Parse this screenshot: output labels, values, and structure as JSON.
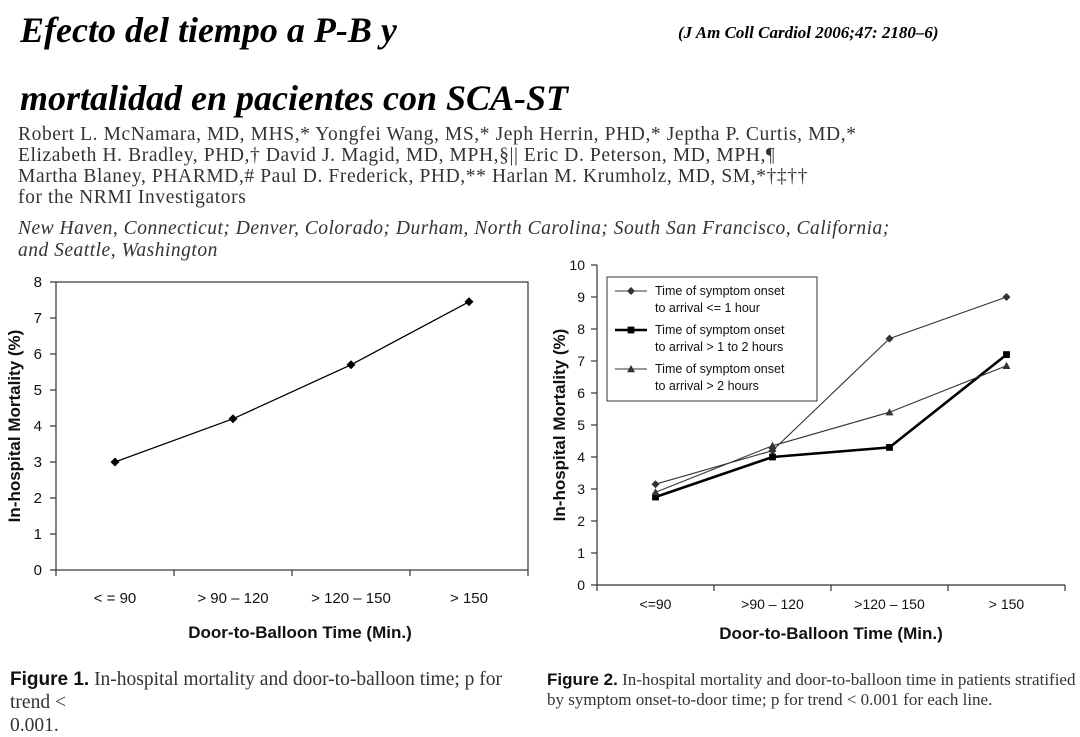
{
  "slide": {
    "title_line1": "Efecto del tiempo a P-B y",
    "title_line2": "mortalidad en pacientes con SCA-ST",
    "citation": "(J Am Coll Cardiol 2006;47: 2180–6)"
  },
  "paper": {
    "authors": [
      "Robert L. McNamara, MD, MHS,* Yongfei Wang, MS,* Jeph Herrin, PHD,* Jeptha P. Curtis, MD,*",
      "Elizabeth H. Bradley, PHD,† David J. Magid, MD, MPH,§|| Eric D. Peterson, MD, MPH,¶",
      "Martha Blaney, PHARMD,# Paul D. Frederick, PHD,** Harlan M. Krumholz, MD, SM,*†‡††",
      "for the NRMI Investigators"
    ],
    "affiliation_line1": "New Haven, Connecticut; Denver, Colorado; Durham, North Carolina; South San Francisco, California;",
    "affiliation_line2": "and Seattle, Washington"
  },
  "figure1": {
    "label": "Figure 1.",
    "caption_line1": "In-hospital mortality and door-to-balloon time; p for trend <",
    "caption_line2": "0.001."
  },
  "figure2": {
    "label": "Figure 2.",
    "caption_line1": "In-hospital mortality and door-to-balloon time in patients stratified",
    "caption_line2": "by symptom onset-to-door time; p for trend < 0.001 for each line."
  },
  "chart_data": [
    {
      "type": "line",
      "categories": [
        "< = 90",
        "> 90 – 120",
        "> 120 – 150",
        "> 150"
      ],
      "series": [
        {
          "values": [
            3.0,
            4.2,
            5.7,
            7.45
          ],
          "color": "#000000",
          "marker": "diamond"
        }
      ],
      "xlabel": "Door-to-Balloon Time (Min.)",
      "ylabel": "In-hospital Mortality (%)",
      "ylim": [
        0,
        8
      ],
      "yticks": [
        "0",
        "1",
        "2",
        "3",
        "4",
        "5",
        "6",
        "7",
        "8"
      ],
      "grid": false,
      "legend": "none"
    },
    {
      "type": "line",
      "categories": [
        "<=90",
        ">90 – 120",
        ">120 – 150",
        "> 150"
      ],
      "series": [
        {
          "name_line1": "Time of symptom onset",
          "name_line2": "to arrival <= 1 hour",
          "values": [
            3.15,
            4.2,
            7.7,
            9.0
          ],
          "marker": "diamond",
          "color": "#333333"
        },
        {
          "name_line1": "Time of symptom onset",
          "name_line2": "to arrival > 1 to 2 hours",
          "values": [
            2.75,
            4.0,
            4.3,
            7.2
          ],
          "marker": "square",
          "color": "#000000"
        },
        {
          "name_line1": "Time of symptom onset",
          "name_line2": "to arrival > 2 hours",
          "values": [
            2.9,
            4.35,
            5.4,
            6.85
          ],
          "marker": "triangle",
          "color": "#333333"
        }
      ],
      "xlabel": "Door-to-Balloon Time (Min.)",
      "ylabel": "In-hospital Mortality (%)",
      "ylim": [
        0,
        10
      ],
      "yticks": [
        "0",
        "1",
        "2",
        "3",
        "4",
        "5",
        "6",
        "7",
        "8",
        "9",
        "10"
      ],
      "grid": false,
      "legend": "top-left"
    }
  ]
}
